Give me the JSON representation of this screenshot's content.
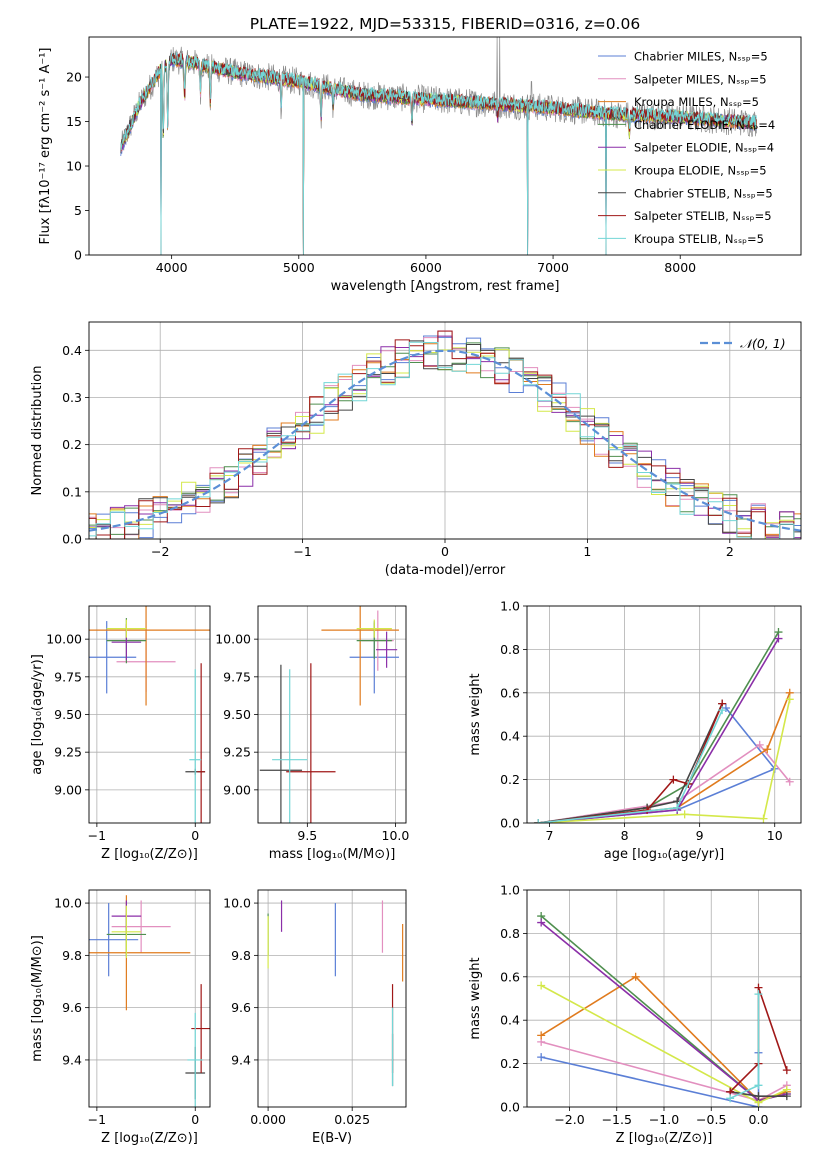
{
  "figure_title": "PLATE=1922, MJD=53315, FIBERID=0316, z=0.06",
  "colors": {
    "chabrier_miles": "#5b7fd6",
    "salpeter_miles": "#e28fbf",
    "kroupa_miles": "#e07b1e",
    "chabrier_elodie": "#4f8f4f",
    "salpeter_elodie": "#8b2fa8",
    "kroupa_elodie": "#d4e84a",
    "chabrier_stelib": "#454545",
    "salpeter_stelib": "#a01818",
    "kroupa_stelib": "#72d6d6",
    "data": "#8a8a8a",
    "normal": "#5b8fd6"
  },
  "chart_data": [
    {
      "id": "spectrum",
      "type": "line",
      "xlabel": "wavelength [Angstrom, rest frame]",
      "ylabel": "Flux [fλ10⁻¹⁷ erg cm⁻² s⁻¹ A⁻¹]",
      "xlim": [
        3350,
        8950
      ],
      "ylim": [
        0,
        24.5
      ],
      "xticks": [
        4000,
        5000,
        6000,
        7000,
        8000
      ],
      "yticks": [
        0,
        5,
        10,
        15,
        20
      ],
      "legend_position": "top-right",
      "legend": [
        "Chabrier MILES, Nₛₛₚ=5",
        "Salpeter MILES, Nₛₛₚ=5",
        "Kroupa MILES, Nₛₛₚ=5",
        "Chabrier ELODIE, Nₛₛₚ=4",
        "Salpeter ELODIE, Nₛₛₚ=4",
        "Kroupa ELODIE, Nₛₛₚ=5",
        "Chabrier STELIB, Nₛₛₚ=5",
        "Salpeter STELIB, Nₛₛₚ=5",
        "Kroupa STELIB, Nₛₛₚ=5"
      ],
      "x_range": [
        3600,
        8600
      ],
      "continuum_anchors": [
        [
          3600,
          12
        ],
        [
          3750,
          17
        ],
        [
          3900,
          20.5
        ],
        [
          4000,
          22
        ],
        [
          4200,
          21.5
        ],
        [
          4500,
          20.5
        ],
        [
          5000,
          19.5
        ],
        [
          5500,
          18
        ],
        [
          6000,
          17.5
        ],
        [
          6500,
          17
        ],
        [
          7000,
          16.5
        ],
        [
          7500,
          15.8
        ],
        [
          8000,
          15.5
        ],
        [
          8600,
          14.8
        ]
      ],
      "absorption_lines": [
        [
          3934,
          8
        ],
        [
          3969,
          7
        ],
        [
          4102,
          4
        ],
        [
          4227,
          3
        ],
        [
          4304,
          4
        ],
        [
          4861,
          3
        ],
        [
          5175,
          3.5
        ],
        [
          5270,
          2
        ],
        [
          5890,
          2.5
        ],
        [
          6563,
          1.5
        ],
        [
          7600,
          2
        ]
      ],
      "dips_to_zero": [
        3915,
        5035,
        6800,
        7415
      ],
      "data_spikes": [
        [
          6560,
          24.5
        ],
        [
          6580,
          24.5
        ],
        [
          6830,
          19.5
        ]
      ]
    },
    {
      "id": "residuals",
      "type": "step",
      "xlabel": "(data-model)/error",
      "ylabel": "Normed distribution",
      "xlim": [
        -2.5,
        2.5
      ],
      "ylim": [
        0,
        0.46
      ],
      "xticks": [
        -2,
        -1,
        0,
        1,
        2
      ],
      "yticks": [
        0.0,
        0.1,
        0.2,
        0.3,
        0.4
      ],
      "grid": true,
      "legend_position": "top-right",
      "legend": [
        "𝒩(0, 1)"
      ],
      "bin_width": 0.1
    },
    {
      "id": "age_vs_Z",
      "type": "errorbar",
      "xlabel": "Z [log₁₀(Z/Z⊙)]",
      "ylabel": "age  [log₁₀(age/yr)]",
      "xlim": [
        -1.08,
        0.15
      ],
      "ylim": [
        8.78,
        10.22
      ],
      "xticks": [
        -1,
        0
      ],
      "yticks": [
        9.0,
        9.25,
        9.5,
        9.75,
        10.0
      ],
      "grid": true,
      "points": [
        {
          "series": "chabrier_miles",
          "x": -0.9,
          "xerr": 0.3,
          "y": 9.88,
          "yerr": 0.24
        },
        {
          "series": "salpeter_miles",
          "x": -0.5,
          "xerr": 0.3,
          "y": 9.85,
          "yerr": 0.2
        },
        {
          "series": "kroupa_miles",
          "x": -0.5,
          "xerr": 0.65,
          "y": 10.06,
          "yerr": 0.5
        },
        {
          "series": "chabrier_elodie",
          "x": -0.7,
          "xerr": 0.2,
          "y": 9.99,
          "yerr": 0.15
        },
        {
          "series": "salpeter_elodie",
          "x": -0.7,
          "xerr": 0.15,
          "y": 9.98,
          "yerr": 0.12
        },
        {
          "series": "kroupa_elodie",
          "x": -0.7,
          "xerr": 0.2,
          "y": 10.07,
          "yerr": 0.06
        },
        {
          "series": "chabrier_stelib",
          "x": 0.0,
          "xerr": 0.1,
          "y": 9.12,
          "yerr": 0.02
        },
        {
          "series": "salpeter_stelib",
          "x": 0.06,
          "xerr": 0.04,
          "y": 9.12,
          "yerr": 0.72
        },
        {
          "series": "kroupa_stelib",
          "x": 0.0,
          "xerr": 0.06,
          "y": 9.2,
          "yerr": 0.6
        }
      ]
    },
    {
      "id": "age_vs_mass",
      "type": "errorbar",
      "xlabel": "mass [log₁₀(M/M⊙)]",
      "ylabel": "",
      "xlim": [
        9.22,
        10.06
      ],
      "ylim": [
        8.78,
        10.22
      ],
      "xticks": [
        9.5,
        10.0
      ],
      "yticks": [
        9.0,
        9.25,
        9.5,
        9.75,
        10.0
      ],
      "grid": true,
      "points": [
        {
          "series": "chabrier_miles",
          "x": 9.88,
          "xerr": 0.14,
          "y": 9.88,
          "yerr": 0.24
        },
        {
          "series": "salpeter_miles",
          "x": 9.9,
          "xerr": 0.09,
          "y": 9.99,
          "yerr": 0.2
        },
        {
          "series": "kroupa_miles",
          "x": 9.8,
          "xerr": 0.22,
          "y": 10.06,
          "yerr": 0.5
        },
        {
          "series": "chabrier_elodie",
          "x": 9.88,
          "xerr": 0.1,
          "y": 9.99,
          "yerr": 0.12
        },
        {
          "series": "salpeter_elodie",
          "x": 9.95,
          "xerr": 0.06,
          "y": 9.93,
          "yerr": 0.12
        },
        {
          "series": "kroupa_elodie",
          "x": 9.88,
          "xerr": 0.1,
          "y": 10.07,
          "yerr": 0.06
        },
        {
          "series": "chabrier_stelib",
          "x": 9.35,
          "xerr": 0.12,
          "y": 9.13,
          "yerr": 0.7
        },
        {
          "series": "salpeter_stelib",
          "x": 9.52,
          "xerr": 0.14,
          "y": 9.12,
          "yerr": 0.72
        },
        {
          "series": "kroupa_stelib",
          "x": 9.4,
          "xerr": 0.1,
          "y": 9.2,
          "yerr": 0.6
        }
      ]
    },
    {
      "id": "mass_weight_vs_age",
      "type": "line",
      "xlabel": "age  [log₁₀(age/yr)]",
      "ylabel": "mass weight",
      "xlim": [
        6.7,
        10.35
      ],
      "ylim": [
        0,
        1.0
      ],
      "xticks": [
        7,
        8,
        9,
        10
      ],
      "yticks": [
        0.0,
        0.2,
        0.4,
        0.6,
        0.8,
        1.0
      ],
      "grid": true,
      "series": [
        {
          "series": "chabrier_miles",
          "x": [
            6.85,
            8.7,
            10.0,
            9.35
          ],
          "y": [
            0.0,
            0.06,
            0.25,
            0.53
          ]
        },
        {
          "series": "salpeter_miles",
          "x": [
            6.85,
            8.7,
            9.8,
            10.2
          ],
          "y": [
            0.0,
            0.1,
            0.36,
            0.19
          ]
        },
        {
          "series": "kroupa_miles",
          "x": [
            6.85,
            8.7,
            9.9,
            10.2
          ],
          "y": [
            0.0,
            0.07,
            0.34,
            0.6
          ]
        },
        {
          "series": "chabrier_elodie",
          "x": [
            6.85,
            8.3,
            8.85,
            10.05
          ],
          "y": [
            0.0,
            0.07,
            0.18,
            0.88
          ]
        },
        {
          "series": "salpeter_elodie",
          "x": [
            6.85,
            8.7,
            10.05
          ],
          "y": [
            0.0,
            0.06,
            0.85
          ]
        },
        {
          "series": "kroupa_elodie",
          "x": [
            6.85,
            8.8,
            9.85,
            10.2
          ],
          "y": [
            0.0,
            0.04,
            0.02,
            0.57
          ]
        },
        {
          "series": "chabrier_stelib",
          "x": [
            6.85,
            8.3,
            8.7,
            9.3
          ],
          "y": [
            0.0,
            0.07,
            0.1,
            0.55
          ]
        },
        {
          "series": "salpeter_stelib",
          "x": [
            6.85,
            8.3,
            8.65,
            8.85,
            9.3
          ],
          "y": [
            0.0,
            0.06,
            0.2,
            0.18,
            0.55
          ]
        },
        {
          "series": "kroupa_stelib",
          "x": [
            6.85,
            8.7,
            9.3
          ],
          "y": [
            0.0,
            0.07,
            0.52
          ]
        }
      ]
    },
    {
      "id": "mass_vs_Z",
      "type": "errorbar",
      "xlabel": "Z [log₁₀(Z/Z⊙)]",
      "ylabel": "mass [log₁₀(M/M⊙)]",
      "xlim": [
        -1.08,
        0.15
      ],
      "ylim": [
        9.22,
        10.05
      ],
      "xticks": [
        -1,
        0
      ],
      "yticks": [
        9.4,
        9.6,
        9.8,
        10.0
      ],
      "grid": true,
      "points": [
        {
          "series": "chabrier_miles",
          "x": -0.88,
          "xerr": 0.3,
          "y": 9.86,
          "yerr": 0.14
        },
        {
          "series": "salpeter_miles",
          "x": -0.55,
          "xerr": 0.3,
          "y": 9.91,
          "yerr": 0.1
        },
        {
          "series": "kroupa_miles",
          "x": -0.7,
          "xerr": 0.65,
          "y": 9.81,
          "yerr": 0.22
        },
        {
          "series": "chabrier_elodie",
          "x": -0.7,
          "xerr": 0.2,
          "y": 9.88,
          "yerr": 0.08
        },
        {
          "series": "salpeter_elodie",
          "x": -0.7,
          "xerr": 0.15,
          "y": 9.95,
          "yerr": 0.06
        },
        {
          "series": "kroupa_elodie",
          "x": -0.7,
          "xerr": 0.15,
          "y": 9.89,
          "yerr": 0.1
        },
        {
          "series": "chabrier_stelib",
          "x": 0.0,
          "xerr": 0.1,
          "y": 9.35,
          "yerr": 0.1
        },
        {
          "series": "salpeter_stelib",
          "x": 0.06,
          "xerr": 0.1,
          "y": 9.52,
          "yerr": 0.17
        },
        {
          "series": "kroupa_stelib",
          "x": 0.0,
          "xerr": 0.08,
          "y": 9.4,
          "yerr": 0.18
        }
      ]
    },
    {
      "id": "mass_vs_EBV",
      "type": "errorbar",
      "xlabel": "E(B-V)",
      "ylabel": "",
      "xlim": [
        -0.003,
        0.041
      ],
      "ylim": [
        9.22,
        10.05
      ],
      "xticks": [
        0.0,
        0.025
      ],
      "xticklabels": [
        "0.000",
        "0.025"
      ],
      "yticks": [
        9.4,
        9.6,
        9.8,
        10.0
      ],
      "grid": true,
      "points": [
        {
          "series": "chabrier_miles",
          "x": 0.02,
          "xerr": 0.0,
          "y": 9.86,
          "yerr": 0.14
        },
        {
          "series": "salpeter_miles",
          "x": 0.034,
          "xerr": 0.0,
          "y": 9.91,
          "yerr": 0.1
        },
        {
          "series": "kroupa_miles",
          "x": 0.04,
          "xerr": 0.0,
          "y": 9.81,
          "yerr": 0.11
        },
        {
          "series": "chabrier_elodie",
          "x": 0.0,
          "xerr": 0.0,
          "y": 9.88,
          "yerr": 0.08
        },
        {
          "series": "salpeter_elodie",
          "x": 0.004,
          "xerr": 0.0,
          "y": 9.95,
          "yerr": 0.06
        },
        {
          "series": "kroupa_elodie",
          "x": 0.0,
          "xerr": 0.0,
          "y": 9.85,
          "yerr": 0.1
        },
        {
          "series": "chabrier_stelib",
          "x": 0.037,
          "xerr": 0.0,
          "y": 9.4,
          "yerr": 0.1
        },
        {
          "series": "salpeter_stelib",
          "x": 0.037,
          "xerr": 0.0,
          "y": 9.52,
          "yerr": 0.17
        },
        {
          "series": "kroupa_stelib",
          "x": 0.037,
          "xerr": 0.0,
          "y": 9.45,
          "yerr": 0.15
        }
      ]
    },
    {
      "id": "mass_weight_vs_Z",
      "type": "line",
      "xlabel": "Z [log₁₀(Z/Z⊙)]",
      "ylabel": "mass weight",
      "xlim": [
        -2.45,
        0.45
      ],
      "ylim": [
        0,
        1.0
      ],
      "xticks": [
        -2.0,
        -1.5,
        -1.0,
        -0.5,
        0.0
      ],
      "yticks": [
        0.0,
        0.2,
        0.4,
        0.6,
        0.8,
        1.0
      ],
      "grid": true,
      "series": [
        {
          "series": "chabrier_miles",
          "x": [
            -2.3,
            0.0,
            0.0
          ],
          "y": [
            0.23,
            0.0,
            0.25
          ]
        },
        {
          "series": "salpeter_miles",
          "x": [
            -2.3,
            0.0,
            0.3
          ],
          "y": [
            0.3,
            0.03,
            0.1
          ]
        },
        {
          "series": "kroupa_miles",
          "x": [
            -2.3,
            -1.3,
            0.0,
            0.3
          ],
          "y": [
            0.33,
            0.6,
            0.03,
            0.07
          ]
        },
        {
          "series": "chabrier_elodie",
          "x": [
            -2.3,
            0.0,
            0.3
          ],
          "y": [
            0.88,
            0.03,
            0.06
          ]
        },
        {
          "series": "salpeter_elodie",
          "x": [
            -2.3,
            0.0,
            0.3
          ],
          "y": [
            0.85,
            0.03,
            0.06
          ]
        },
        {
          "series": "kroupa_elodie",
          "x": [
            -2.3,
            0.0,
            0.3
          ],
          "y": [
            0.56,
            0.02,
            0.08
          ]
        },
        {
          "series": "chabrier_stelib",
          "x": [
            -0.3,
            0.0,
            0.3
          ],
          "y": [
            0.07,
            0.05,
            0.05
          ]
        },
        {
          "series": "salpeter_stelib",
          "x": [
            -0.3,
            0.0,
            0.0,
            0.3
          ],
          "y": [
            0.07,
            0.2,
            0.55,
            0.17
          ]
        },
        {
          "series": "kroupa_stelib",
          "x": [
            -0.3,
            0.0,
            0.0
          ],
          "y": [
            0.04,
            0.1,
            0.52
          ]
        }
      ]
    }
  ]
}
